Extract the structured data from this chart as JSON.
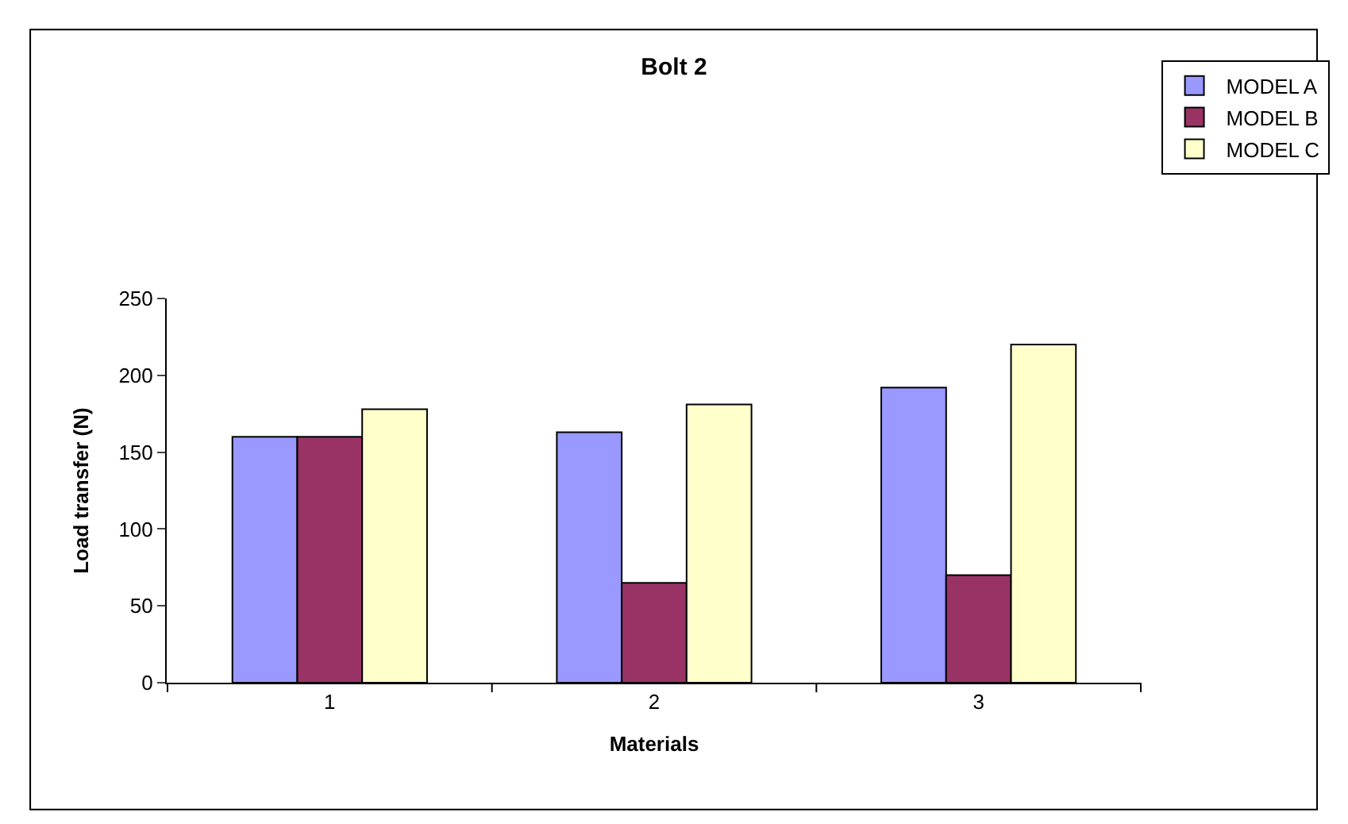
{
  "chart_data": {
    "type": "bar",
    "title": "Bolt 2",
    "xlabel": "Materials",
    "ylabel": "Load transfer (N)",
    "categories": [
      "1",
      "2",
      "3"
    ],
    "series": [
      {
        "name": "MODEL A",
        "color": "#9999ff",
        "values": [
          160,
          163,
          192
        ]
      },
      {
        "name": "MODEL B",
        "color": "#993366",
        "values": [
          160,
          65,
          70
        ]
      },
      {
        "name": "MODEL C",
        "color": "#ffffcc",
        "values": [
          178,
          181,
          220
        ]
      }
    ],
    "ylim": [
      0,
      250
    ],
    "yticks": [
      0,
      50,
      100,
      150,
      200,
      250
    ],
    "grid": false,
    "legend": "top right"
  }
}
